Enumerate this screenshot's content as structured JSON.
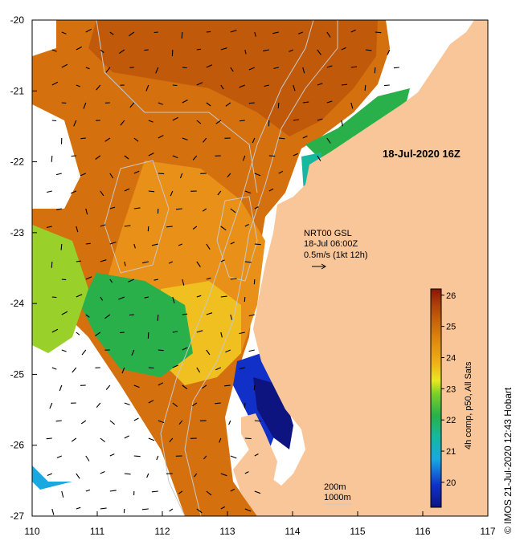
{
  "map": {
    "date_label": "18-Jul-2020 16Z",
    "current_info": [
      "NRT00 GSL",
      "18-Jul 06:00Z",
      "0.5m/s (1kt 12h)"
    ],
    "depth_contours": [
      "200m",
      "1000m"
    ],
    "x_ticks": [
      "110",
      "111",
      "112",
      "113",
      "114",
      "115",
      "116",
      "117"
    ],
    "y_ticks": [
      "-20",
      "-21",
      "-22",
      "-23",
      "-24",
      "-25",
      "-26",
      "-27"
    ],
    "land_color": "#f9c69a",
    "no_data_color": "#ffffff",
    "sst_warm_color": "#d4700e",
    "sst_cool_color": "#2ab04a",
    "sst_coldest_color": "#0d1fa0",
    "vector_color": "#000000",
    "contour_color": "#c8c8c8"
  },
  "colorbar": {
    "min": 19.2,
    "max": 26.2,
    "ticks": [
      "26",
      "25",
      "24",
      "23",
      "22",
      "21",
      "20"
    ],
    "label": "4h comp, p50, All Sats"
  },
  "credit": "© IMOS 21-Jul-2020 12:43 Hobart"
}
